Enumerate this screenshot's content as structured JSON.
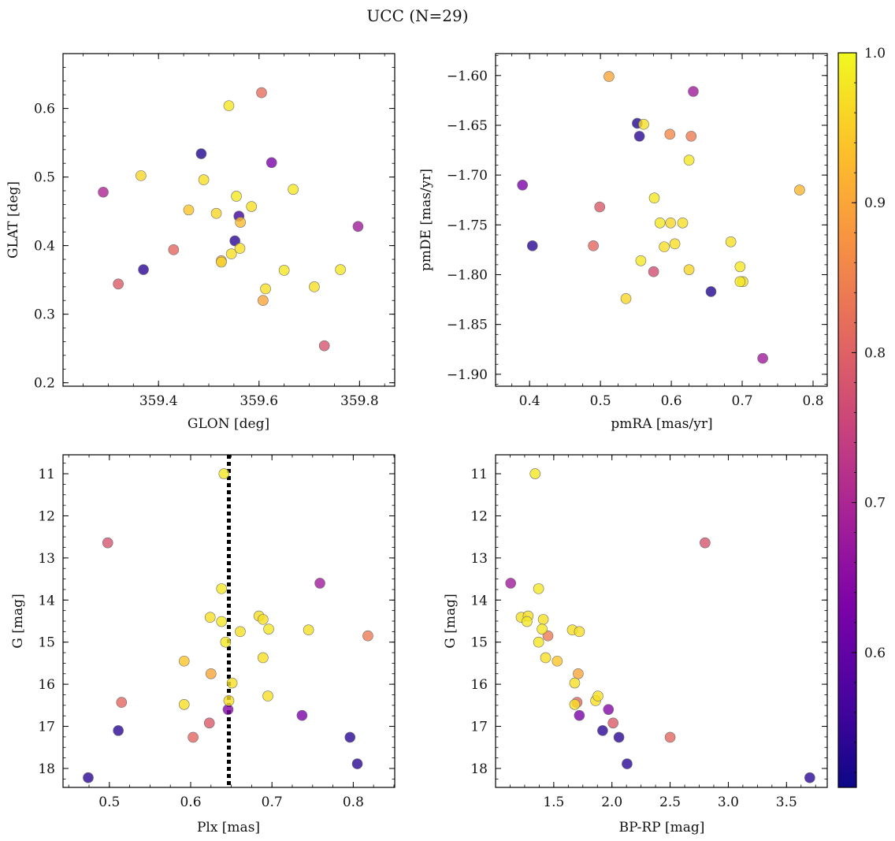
{
  "figure": {
    "title": "UCC (N=29)"
  },
  "colorbar": {
    "colormap": "plasma",
    "vmin": 0.51,
    "vmax": 1.0,
    "ticks": [
      0.6,
      0.7,
      0.8,
      0.9,
      1.0
    ],
    "tick_labels": [
      "0.6",
      "0.7",
      "0.8",
      "0.9",
      "1.0"
    ]
  },
  "chart_data": [
    {
      "type": "scatter",
      "id": "glon-glat",
      "xlabel": "GLON [deg]",
      "ylabel": "GLAT [deg]",
      "xlim": [
        359.21,
        359.87
      ],
      "ylim": [
        0.195,
        0.68
      ],
      "x_ticks": [
        359.4,
        359.6,
        359.8
      ],
      "x_tick_labels": [
        "359.4",
        "359.6",
        "359.8"
      ],
      "y_ticks": [
        0.2,
        0.3,
        0.4,
        0.5,
        0.6
      ],
      "y_tick_labels": [
        "0.2",
        "0.3",
        "0.4",
        "0.5",
        "0.6"
      ],
      "y_inverted": false,
      "points": [
        {
          "x": 359.29,
          "y": 0.478,
          "p": 0.7
        },
        {
          "x": 359.32,
          "y": 0.344,
          "p": 0.79
        },
        {
          "x": 359.37,
          "y": 0.365,
          "p": 0.54
        },
        {
          "x": 359.365,
          "y": 0.502,
          "p": 0.96
        },
        {
          "x": 359.43,
          "y": 0.394,
          "p": 0.81
        },
        {
          "x": 359.46,
          "y": 0.452,
          "p": 0.94
        },
        {
          "x": 359.485,
          "y": 0.534,
          "p": 0.53
        },
        {
          "x": 359.49,
          "y": 0.496,
          "p": 0.97
        },
        {
          "x": 359.515,
          "y": 0.447,
          "p": 0.96
        },
        {
          "x": 359.525,
          "y": 0.378,
          "p": 0.9
        },
        {
          "x": 359.525,
          "y": 0.376,
          "p": 0.96
        },
        {
          "x": 359.54,
          "y": 0.604,
          "p": 0.98
        },
        {
          "x": 359.545,
          "y": 0.388,
          "p": 0.97
        },
        {
          "x": 359.552,
          "y": 0.407,
          "p": 0.54
        },
        {
          "x": 359.555,
          "y": 0.472,
          "p": 0.98
        },
        {
          "x": 359.56,
          "y": 0.443,
          "p": 0.56
        },
        {
          "x": 359.562,
          "y": 0.396,
          "p": 0.97
        },
        {
          "x": 359.563,
          "y": 0.434,
          "p": 0.93
        },
        {
          "x": 359.585,
          "y": 0.457,
          "p": 0.97
        },
        {
          "x": 359.605,
          "y": 0.623,
          "p": 0.82
        },
        {
          "x": 359.608,
          "y": 0.32,
          "p": 0.9
        },
        {
          "x": 359.613,
          "y": 0.337,
          "p": 0.97
        },
        {
          "x": 359.625,
          "y": 0.521,
          "p": 0.63
        },
        {
          "x": 359.65,
          "y": 0.364,
          "p": 0.98
        },
        {
          "x": 359.668,
          "y": 0.482,
          "p": 0.98
        },
        {
          "x": 359.71,
          "y": 0.34,
          "p": 0.97
        },
        {
          "x": 359.73,
          "y": 0.254,
          "p": 0.78
        },
        {
          "x": 359.762,
          "y": 0.365,
          "p": 0.98
        },
        {
          "x": 359.797,
          "y": 0.428,
          "p": 0.68
        }
      ]
    },
    {
      "type": "scatter",
      "id": "pmra-pmde",
      "xlabel": "pmRA [mas/yr]",
      "ylabel": "pmDE [mas/yr]",
      "xlim": [
        0.352,
        0.82
      ],
      "ylim": [
        -1.912,
        -1.578
      ],
      "x_ticks": [
        0.4,
        0.5,
        0.6,
        0.7,
        0.8
      ],
      "x_tick_labels": [
        "0.4",
        "0.5",
        "0.6",
        "0.7",
        "0.8"
      ],
      "y_ticks": [
        -1.9,
        -1.85,
        -1.8,
        -1.75,
        -1.7,
        -1.65,
        -1.6
      ],
      "y_tick_labels": [
        "−1.90",
        "−1.85",
        "−1.80",
        "−1.75",
        "−1.70",
        "−1.65",
        "−1.60"
      ],
      "y_inverted": false,
      "points": [
        {
          "x": 0.39,
          "y": -1.71,
          "p": 0.63
        },
        {
          "x": 0.404,
          "y": -1.771,
          "p": 0.54
        },
        {
          "x": 0.49,
          "y": -1.771,
          "p": 0.81
        },
        {
          "x": 0.499,
          "y": -1.732,
          "p": 0.79
        },
        {
          "x": 0.512,
          "y": -1.601,
          "p": 0.9
        },
        {
          "x": 0.536,
          "y": -1.824,
          "p": 0.96
        },
        {
          "x": 0.552,
          "y": -1.648,
          "p": 0.53
        },
        {
          "x": 0.555,
          "y": -1.661,
          "p": 0.54
        },
        {
          "x": 0.557,
          "y": -1.786,
          "p": 0.98
        },
        {
          "x": 0.561,
          "y": -1.649,
          "p": 0.97
        },
        {
          "x": 0.576,
          "y": -1.723,
          "p": 0.98
        },
        {
          "x": 0.575,
          "y": -1.797,
          "p": 0.77
        },
        {
          "x": 0.584,
          "y": -1.748,
          "p": 0.98
        },
        {
          "x": 0.59,
          "y": -1.772,
          "p": 0.97
        },
        {
          "x": 0.598,
          "y": -1.659,
          "p": 0.86
        },
        {
          "x": 0.599,
          "y": -1.748,
          "p": 0.96
        },
        {
          "x": 0.605,
          "y": -1.769,
          "p": 0.97
        },
        {
          "x": 0.616,
          "y": -1.748,
          "p": 0.97
        },
        {
          "x": 0.625,
          "y": -1.685,
          "p": 0.98
        },
        {
          "x": 0.625,
          "y": -1.795,
          "p": 0.96
        },
        {
          "x": 0.628,
          "y": -1.661,
          "p": 0.84
        },
        {
          "x": 0.631,
          "y": -1.616,
          "p": 0.68
        },
        {
          "x": 0.656,
          "y": -1.817,
          "p": 0.53
        },
        {
          "x": 0.684,
          "y": -1.767,
          "p": 0.97
        },
        {
          "x": 0.697,
          "y": -1.792,
          "p": 0.98
        },
        {
          "x": 0.697,
          "y": -1.807,
          "p": 0.98
        },
        {
          "x": 0.701,
          "y": -1.807,
          "p": 0.97
        },
        {
          "x": 0.729,
          "y": -1.884,
          "p": 0.68
        },
        {
          "x": 0.781,
          "y": -1.715,
          "p": 0.92
        }
      ]
    },
    {
      "type": "scatter",
      "id": "plx-g",
      "xlabel": "Plx [mas]",
      "ylabel": "G [mag]",
      "xlim": [
        0.443,
        0.851
      ],
      "ylim": [
        18.45,
        10.55
      ],
      "x_ticks": [
        0.5,
        0.6,
        0.7,
        0.8
      ],
      "x_tick_labels": [
        "0.5",
        "0.6",
        "0.7",
        "0.8"
      ],
      "y_ticks": [
        11,
        12,
        13,
        14,
        15,
        16,
        17,
        18
      ],
      "y_tick_labels": [
        "11",
        "12",
        "13",
        "14",
        "15",
        "16",
        "17",
        "18"
      ],
      "y_inverted": true,
      "vline": {
        "x": 0.647,
        "style": "dotted"
      },
      "points": [
        {
          "x": 0.474,
          "y": 18.22,
          "p": 0.54
        },
        {
          "x": 0.498,
          "y": 12.64,
          "p": 0.78
        },
        {
          "x": 0.511,
          "y": 17.1,
          "p": 0.54
        },
        {
          "x": 0.515,
          "y": 16.43,
          "p": 0.81
        },
        {
          "x": 0.592,
          "y": 15.45,
          "p": 0.94
        },
        {
          "x": 0.592,
          "y": 16.48,
          "p": 0.97
        },
        {
          "x": 0.603,
          "y": 17.26,
          "p": 0.81
        },
        {
          "x": 0.623,
          "y": 16.92,
          "p": 0.79
        },
        {
          "x": 0.624,
          "y": 14.41,
          "p": 0.97
        },
        {
          "x": 0.625,
          "y": 15.75,
          "p": 0.9
        },
        {
          "x": 0.638,
          "y": 13.73,
          "p": 0.98
        },
        {
          "x": 0.638,
          "y": 14.51,
          "p": 0.98
        },
        {
          "x": 0.641,
          "y": 11.0,
          "p": 0.98
        },
        {
          "x": 0.643,
          "y": 15.0,
          "p": 0.98
        },
        {
          "x": 0.646,
          "y": 16.6,
          "p": 0.64
        },
        {
          "x": 0.647,
          "y": 16.39,
          "p": 0.97
        },
        {
          "x": 0.651,
          "y": 15.97,
          "p": 0.97
        },
        {
          "x": 0.661,
          "y": 14.75,
          "p": 0.97
        },
        {
          "x": 0.684,
          "y": 14.38,
          "p": 0.97
        },
        {
          "x": 0.689,
          "y": 14.46,
          "p": 0.97
        },
        {
          "x": 0.689,
          "y": 15.37,
          "p": 0.97
        },
        {
          "x": 0.695,
          "y": 16.28,
          "p": 0.97
        },
        {
          "x": 0.696,
          "y": 14.69,
          "p": 0.98
        },
        {
          "x": 0.737,
          "y": 16.74,
          "p": 0.63
        },
        {
          "x": 0.745,
          "y": 14.71,
          "p": 0.97
        },
        {
          "x": 0.759,
          "y": 13.6,
          "p": 0.68
        },
        {
          "x": 0.796,
          "y": 17.26,
          "p": 0.54
        },
        {
          "x": 0.805,
          "y": 17.89,
          "p": 0.54
        },
        {
          "x": 0.818,
          "y": 14.85,
          "p": 0.84
        }
      ]
    },
    {
      "type": "scatter",
      "id": "bprp-g",
      "xlabel": "BP-RP [mag]",
      "ylabel": "G [mag]",
      "xlim": [
        1.0,
        3.85
      ],
      "ylim": [
        18.45,
        10.55
      ],
      "x_ticks": [
        1.5,
        2.0,
        2.5,
        3.0,
        3.5
      ],
      "x_tick_labels": [
        "1.5",
        "2.0",
        "2.5",
        "3.0",
        "3.5"
      ],
      "y_ticks": [
        11,
        12,
        13,
        14,
        15,
        16,
        17,
        18
      ],
      "y_tick_labels": [
        "11",
        "12",
        "13",
        "14",
        "15",
        "16",
        "17",
        "18"
      ],
      "y_inverted": true,
      "points": [
        {
          "x": 1.13,
          "y": 13.6,
          "p": 0.68
        },
        {
          "x": 1.22,
          "y": 14.41,
          "p": 0.97
        },
        {
          "x": 1.27,
          "y": 14.51,
          "p": 0.98
        },
        {
          "x": 1.28,
          "y": 14.38,
          "p": 0.97
        },
        {
          "x": 1.34,
          "y": 11.0,
          "p": 0.98
        },
        {
          "x": 1.37,
          "y": 13.73,
          "p": 0.98
        },
        {
          "x": 1.37,
          "y": 15.0,
          "p": 0.98
        },
        {
          "x": 1.4,
          "y": 14.69,
          "p": 0.98
        },
        {
          "x": 1.41,
          "y": 14.46,
          "p": 0.97
        },
        {
          "x": 1.43,
          "y": 15.37,
          "p": 0.97
        },
        {
          "x": 1.45,
          "y": 14.85,
          "p": 0.84
        },
        {
          "x": 1.53,
          "y": 15.45,
          "p": 0.94
        },
        {
          "x": 1.66,
          "y": 14.71,
          "p": 0.97
        },
        {
          "x": 1.68,
          "y": 15.97,
          "p": 0.97
        },
        {
          "x": 1.68,
          "y": 16.48,
          "p": 0.97
        },
        {
          "x": 1.7,
          "y": 16.43,
          "p": 0.81
        },
        {
          "x": 1.71,
          "y": 15.75,
          "p": 0.9
        },
        {
          "x": 1.72,
          "y": 16.74,
          "p": 0.63
        },
        {
          "x": 1.72,
          "y": 14.75,
          "p": 0.97
        },
        {
          "x": 1.86,
          "y": 16.39,
          "p": 0.97
        },
        {
          "x": 1.88,
          "y": 16.28,
          "p": 0.97
        },
        {
          "x": 1.92,
          "y": 17.1,
          "p": 0.54
        },
        {
          "x": 1.97,
          "y": 16.6,
          "p": 0.64
        },
        {
          "x": 2.01,
          "y": 16.92,
          "p": 0.79
        },
        {
          "x": 2.06,
          "y": 17.26,
          "p": 0.54
        },
        {
          "x": 2.13,
          "y": 17.89,
          "p": 0.54
        },
        {
          "x": 2.5,
          "y": 17.26,
          "p": 0.81
        },
        {
          "x": 2.8,
          "y": 12.64,
          "p": 0.78
        },
        {
          "x": 3.7,
          "y": 18.22,
          "p": 0.54
        }
      ]
    }
  ]
}
